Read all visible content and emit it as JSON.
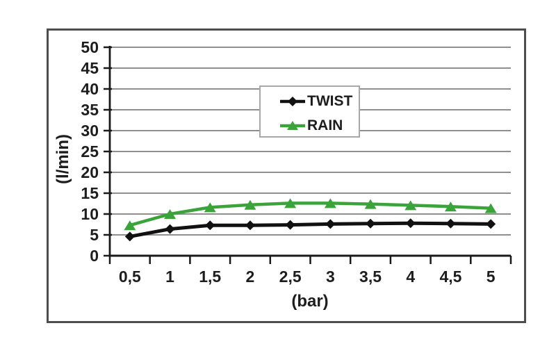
{
  "window": {
    "background": "#ffffff"
  },
  "colors": {
    "frame_border": "#4d4d4d",
    "plot_background": "#ffffff",
    "gridline": "#8f8f8f",
    "axis": "#1a1a1a",
    "tick_text": "#1d1d1d",
    "legend_border": "#a8a8a8",
    "legend_background": "#ffffff"
  },
  "chart_data": {
    "type": "line",
    "title": "",
    "xlabel": "(bar)",
    "ylabel": "(l/min)",
    "categories": [
      "0,5",
      "1",
      "1,5",
      "2",
      "2,5",
      "3",
      "3,5",
      "4",
      "4,5",
      "5"
    ],
    "x_values": [
      0.5,
      1,
      1.5,
      2,
      2.5,
      3,
      3.5,
      4,
      4.5,
      5
    ],
    "ylim": [
      0,
      50
    ],
    "ytick_step": 5,
    "ytick_labels": [
      "0",
      "5",
      "10",
      "15",
      "20",
      "25",
      "30",
      "35",
      "40",
      "45",
      "50"
    ],
    "grid": "horizontal-gridlines-on",
    "legend_position": "inside-upper-center",
    "series": [
      {
        "name": "TWIST",
        "color": "#111111",
        "marker": "diamond",
        "values": [
          4.6,
          6.4,
          7.3,
          7.3,
          7.4,
          7.6,
          7.7,
          7.8,
          7.7,
          7.6
        ]
      },
      {
        "name": "RAIN",
        "color": "#3aa43a",
        "marker": "triangle",
        "values": [
          7.3,
          10,
          11.6,
          12.2,
          12.6,
          12.6,
          12.4,
          12.1,
          11.8,
          11.4
        ]
      }
    ]
  }
}
